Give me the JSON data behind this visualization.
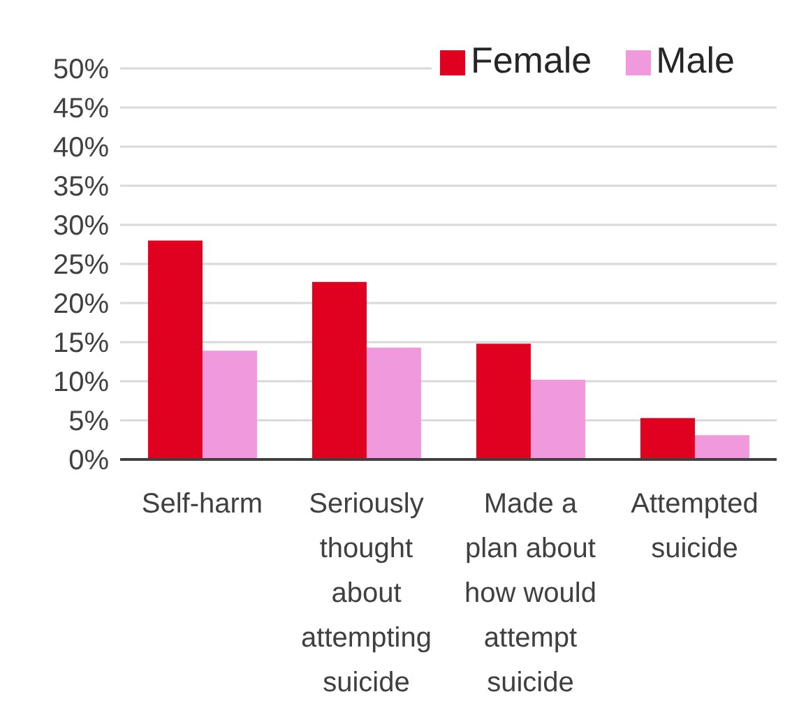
{
  "chart_data": {
    "type": "bar",
    "categories": [
      "Self-harm",
      "Seriously thought about attempting suicide",
      "Made a plan about how would attempt suicide",
      "Attempted suicide"
    ],
    "series": [
      {
        "name": "Female",
        "color": "#e00020",
        "values": [
          28,
          22.7,
          14.8,
          5.3
        ]
      },
      {
        "name": "Male",
        "color": "#f099dd",
        "values": [
          13.9,
          14.3,
          10.2,
          3.1
        ]
      }
    ],
    "ylim": [
      0,
      50
    ],
    "yticks": [
      {
        "value": 0,
        "label": "0%"
      },
      {
        "value": 5,
        "label": "5%"
      },
      {
        "value": 10,
        "label": "10%"
      },
      {
        "value": 15,
        "label": "15%"
      },
      {
        "value": 20,
        "label": "20%"
      },
      {
        "value": 25,
        "label": "25%"
      },
      {
        "value": 30,
        "label": "30%"
      },
      {
        "value": 35,
        "label": "35%"
      },
      {
        "value": 40,
        "label": "40%"
      },
      {
        "value": 45,
        "label": "45%"
      },
      {
        "value": 50,
        "label": "50%"
      }
    ],
    "grid": "y",
    "legend": "top right"
  }
}
